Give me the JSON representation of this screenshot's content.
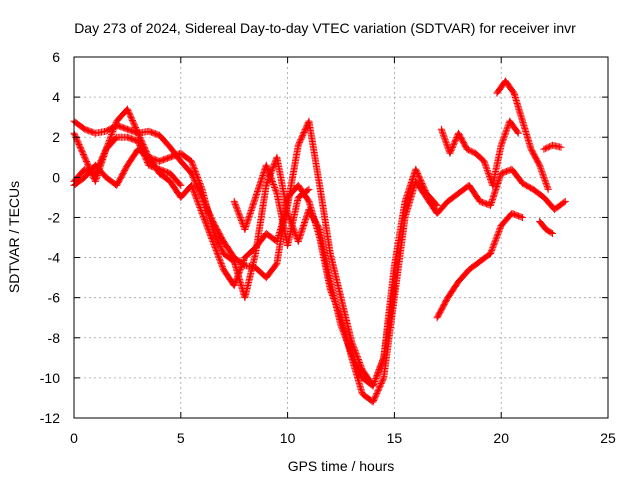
{
  "chart_data": {
    "type": "scatter",
    "title": "Day 273 of 2024, Sidereal Day-to-day VTEC variation (SDTVAR) for receiver invr",
    "xlabel": "GPS time / hours",
    "ylabel": "SDTVAR / TECUs",
    "xlim": [
      0,
      25
    ],
    "ylim": [
      -12,
      6
    ],
    "x_ticks": [
      "0",
      "5",
      "10",
      "15",
      "20",
      "25"
    ],
    "y_ticks": [
      "6",
      "4",
      "2",
      "0",
      "-2",
      "-4",
      "-6",
      "-8",
      "-10",
      "-12"
    ],
    "grid": true,
    "marker": "plus",
    "color": "#ff0000",
    "series": [
      {
        "x": [
          0.0,
          0.5,
          1.0,
          1.5,
          2.0,
          2.5,
          3.0,
          3.5,
          4.0,
          4.5,
          5.0,
          5.5,
          6.0,
          6.5,
          7.0,
          7.5,
          8.0,
          8.5,
          9.0,
          9.5,
          10.0,
          10.5,
          11.0,
          11.5,
          12.0,
          12.5,
          13.0,
          13.5,
          14.0,
          14.5,
          15.0,
          15.5,
          16.0,
          16.5,
          17.0,
          17.5,
          18.0,
          18.5,
          19.0,
          19.5,
          20.0,
          20.5,
          21.0,
          21.5,
          22.0,
          22.5,
          23.0
        ],
        "y": [
          2.8,
          2.4,
          2.2,
          2.3,
          2.6,
          2.4,
          2.2,
          2.3,
          2.1,
          1.5,
          0.8,
          0.2,
          -1.0,
          -2.2,
          -3.2,
          -4.0,
          -4.4,
          -4.5,
          -5.0,
          -4.3,
          -1.0,
          -0.4,
          -1.2,
          -3.0,
          -5.6,
          -7.0,
          -9.0,
          -10.8,
          -11.2,
          -10.0,
          -6.0,
          -2.0,
          -0.2,
          -1.0,
          -1.8,
          -1.2,
          -0.8,
          -0.4,
          -1.2,
          -1.4,
          0.2,
          0.4,
          -0.3,
          -0.6,
          -1.0,
          -1.6,
          -1.2
        ]
      },
      {
        "x": [
          0.0,
          0.5,
          1.0,
          1.5,
          2.0,
          2.5,
          3.0,
          3.5,
          4.0,
          4.5,
          5.0,
          5.5,
          6.0,
          6.5,
          7.0,
          7.5,
          8.0,
          8.5,
          9.0,
          9.5,
          10.0,
          10.5,
          11.0,
          11.5,
          12.0,
          12.5,
          13.0,
          13.5,
          14.0,
          14.5,
          15.0,
          15.5,
          16.0,
          16.5,
          17.0
        ],
        "y": [
          2.2,
          1.0,
          -0.2,
          1.4,
          2.8,
          3.4,
          2.2,
          1.0,
          0.2,
          -0.2,
          -1.0,
          -0.4,
          -1.8,
          -3.2,
          -4.6,
          -5.4,
          -4.0,
          -3.5,
          -2.8,
          -3.2,
          -1.4,
          1.6,
          2.8,
          -0.4,
          -3.8,
          -6.0,
          -8.2,
          -9.6,
          -10.4,
          -9.0,
          -4.4,
          -1.2,
          0.4,
          -0.8,
          -1.4
        ]
      },
      {
        "x": [
          0.0,
          0.5,
          1.0,
          1.5,
          2.0,
          2.5,
          3.0,
          3.5,
          4.0,
          4.5,
          5.0,
          5.5,
          6.0,
          6.5,
          7.0,
          7.5,
          8.0,
          8.5,
          9.0,
          9.5,
          10.0,
          10.5,
          11.0,
          11.5,
          12.0,
          12.5,
          13.0,
          13.5,
          14.0,
          14.5,
          15.0
        ],
        "y": [
          -0.4,
          0.0,
          0.6,
          0.0,
          -0.4,
          0.6,
          1.4,
          1.0,
          0.8,
          1.0,
          1.2,
          0.8,
          -0.6,
          -2.6,
          -3.8,
          -4.2,
          -6.0,
          -3.8,
          -0.4,
          1.0,
          -1.8,
          -3.2,
          -1.6,
          -2.6,
          -5.2,
          -7.4,
          -8.8,
          -10.0,
          -10.4,
          -9.0,
          -5.4
        ]
      },
      {
        "x": [
          0.0,
          0.5,
          1.0,
          1.5,
          2.0,
          2.5,
          3.0,
          3.5,
          4.0,
          4.5,
          5.0
        ],
        "y": [
          -0.2,
          0.4,
          0.2,
          1.4,
          2.0,
          2.0,
          1.8,
          0.6,
          0.4,
          0.2,
          -0.4
        ]
      },
      {
        "x": [
          7.5,
          8.0,
          8.5,
          9.0,
          9.5,
          10.0,
          10.5,
          11.0
        ],
        "y": [
          -1.2,
          -2.6,
          -1.0,
          0.6,
          -0.8,
          -3.4,
          -1.0,
          -0.6
        ]
      },
      {
        "x": [
          17.2,
          17.6,
          18.0,
          18.4,
          18.8,
          19.2,
          19.6,
          20.0,
          20.4,
          20.8
        ],
        "y": [
          2.4,
          1.2,
          2.2,
          1.4,
          1.2,
          0.8,
          -0.4,
          1.6,
          2.8,
          2.2
        ]
      },
      {
        "x": [
          17.0,
          17.5,
          18.0,
          18.5,
          19.0,
          19.5,
          20.0,
          20.5,
          21.0
        ],
        "y": [
          -7.0,
          -6.0,
          -5.2,
          -4.6,
          -4.2,
          -3.8,
          -2.4,
          -1.8,
          -2.0
        ]
      },
      {
        "x": [
          19.8,
          20.2,
          20.6,
          21.0,
          21.4,
          21.8,
          22.2
        ],
        "y": [
          4.2,
          4.8,
          4.2,
          2.8,
          1.4,
          0.6,
          -0.6
        ]
      },
      {
        "x": [
          21.8,
          22.1,
          22.4
        ],
        "y": [
          -2.2,
          -2.6,
          -2.8
        ]
      },
      {
        "x": [
          22.0,
          22.4,
          22.8
        ],
        "y": [
          1.4,
          1.6,
          1.5
        ]
      }
    ]
  }
}
